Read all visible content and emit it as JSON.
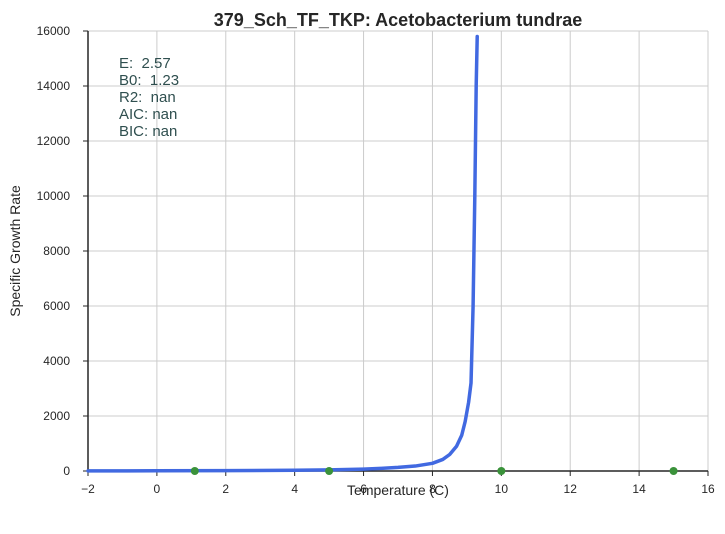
{
  "chart_data": {
    "type": "line",
    "title": "379_Sch_TF_TKP: Acetobacterium tundrae",
    "xlabel": "Temperature (C)",
    "ylabel": "Specific Growth Rate",
    "xlim": [
      -2,
      16
    ],
    "ylim": [
      0,
      16000
    ],
    "x_ticks": [
      -2,
      0,
      2,
      4,
      6,
      8,
      10,
      12,
      14,
      16
    ],
    "x_tick_labels": [
      "−2",
      "0",
      "2",
      "4",
      "6",
      "8",
      "10",
      "12",
      "14",
      "16"
    ],
    "y_ticks": [
      0,
      2000,
      4000,
      6000,
      8000,
      10000,
      12000,
      14000,
      16000
    ],
    "y_tick_labels": [
      "0",
      "2000",
      "4000",
      "6000",
      "8000",
      "10000",
      "12000",
      "14000",
      "16000"
    ],
    "grid": true,
    "annotations": [
      "E:  2.57",
      "B0:  1.23",
      "R2:  nan",
      "AIC: nan",
      "BIC: nan"
    ],
    "series": [
      {
        "kind": "line",
        "color": "#4169e1",
        "x": [
          -2,
          0,
          2,
          4,
          5,
          6,
          6.5,
          7,
          7.5,
          8,
          8.3,
          8.5,
          8.7,
          8.85,
          8.95,
          9.05,
          9.12,
          9.18,
          9.23,
          9.27,
          9.3
        ],
        "y": [
          5,
          8,
          14,
          28,
          40,
          70,
          95,
          130,
          180,
          280,
          420,
          600,
          900,
          1300,
          1800,
          2500,
          3200,
          6000,
          10000,
          14000,
          15800
        ]
      },
      {
        "kind": "scatter",
        "color": "#3a923a",
        "x": [
          1.1,
          5.0,
          10.0,
          15.0
        ],
        "y": [
          0,
          0,
          0,
          0
        ]
      }
    ]
  }
}
